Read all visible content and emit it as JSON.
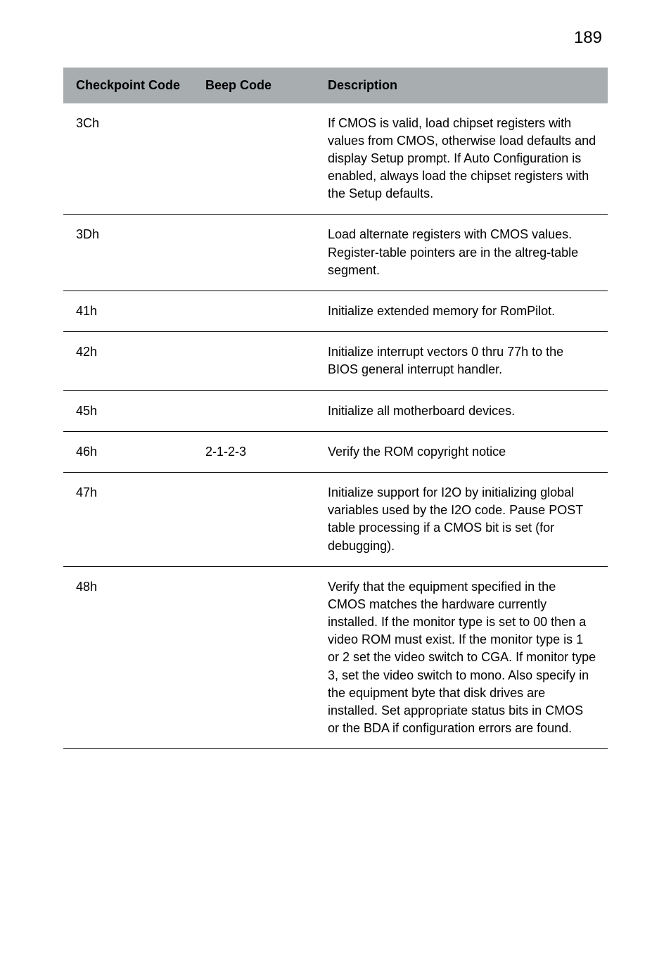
{
  "page_number": "189",
  "table": {
    "columns": [
      {
        "key": "code",
        "label": "Checkpoint Code"
      },
      {
        "key": "beep",
        "label": "Beep Code"
      },
      {
        "key": "desc",
        "label": "Description"
      }
    ],
    "rows": [
      {
        "code": "3Ch",
        "beep": "",
        "desc": "If CMOS is valid, load chipset registers with values from CMOS, otherwise load defaults and display Setup prompt. If Auto Configuration is enabled, always load the chipset registers with the Setup defaults."
      },
      {
        "code": "3Dh",
        "beep": "",
        "desc": "Load alternate registers with CMOS values. Register-table pointers are in the altreg-table segment."
      },
      {
        "code": "41h",
        "beep": "",
        "desc": "Initialize extended memory for RomPilot."
      },
      {
        "code": "42h",
        "beep": "",
        "desc": "Initialize interrupt vectors 0 thru 77h to the BIOS general interrupt handler."
      },
      {
        "code": "45h",
        "beep": "",
        "desc": "Initialize all motherboard devices."
      },
      {
        "code": "46h",
        "beep": "2-1-2-3",
        "desc": "Verify the ROM copyright notice"
      },
      {
        "code": "47h",
        "beep": "",
        "desc": "Initialize support for I2O by initializing global variables used by the I2O code. Pause POST table processing if a CMOS bit is set (for debugging)."
      },
      {
        "code": "48h",
        "beep": "",
        "desc": "Verify that the equipment specified in the CMOS matches the hardware currently installed. If the monitor type is set to 00 then a video ROM must exist. If the monitor type is 1 or 2 set the video switch to CGA. If monitor type 3, set the video switch to mono. Also specify in the equipment byte that disk drives are installed. Set appropriate status bits in CMOS or the BDA if configuration errors are found."
      }
    ],
    "header_bg": "#a8adb0",
    "border_color": "#000000",
    "font_size_header": 18,
    "font_size_body": 18
  }
}
